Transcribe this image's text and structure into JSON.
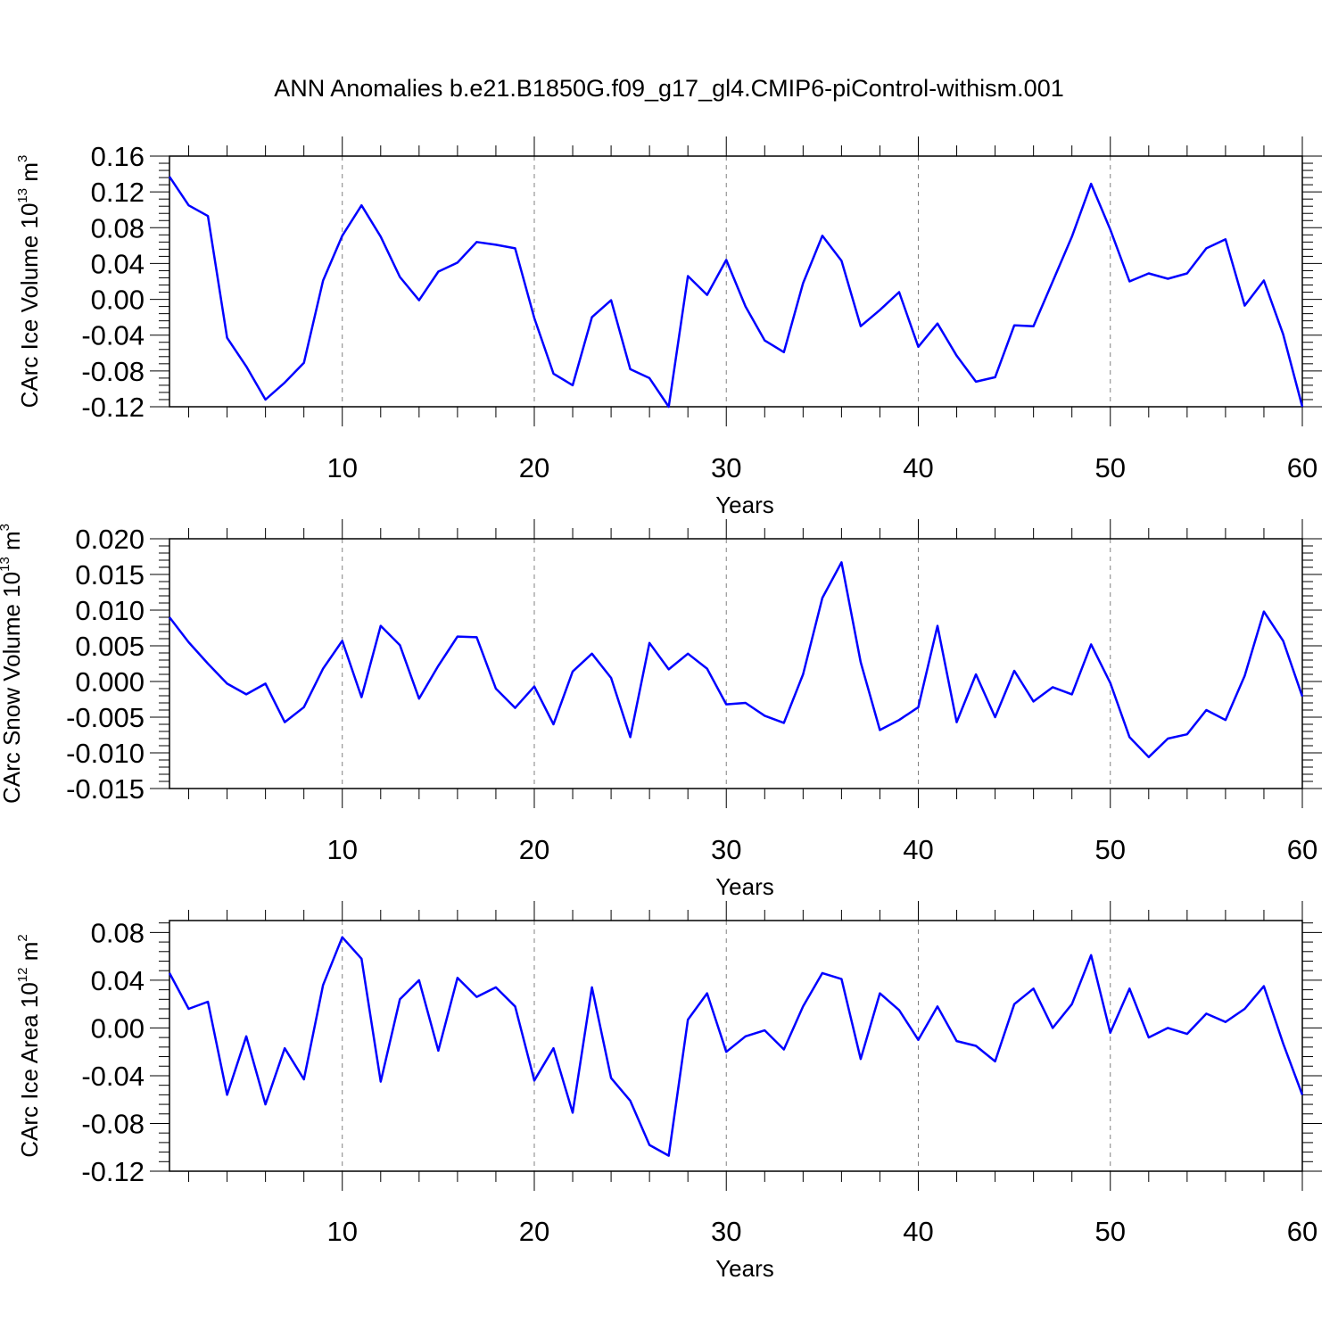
{
  "title": "ANN Anomalies b.e21.B1850G.f09_g17_gl4.CMIP6-piControl-withism.001",
  "colors": {
    "line": "#0000ff",
    "axis": "#000000",
    "gridline": "#808080"
  },
  "chart_data": [
    {
      "type": "line",
      "ylabel_main": "CArc Ice Volume 10",
      "ylabel_exp": "13",
      "ylabel_unit": " m",
      "ylabel_unit_exp": "3",
      "xlabel": "Years",
      "xlim": [
        1,
        60
      ],
      "ylim": [
        -0.12,
        0.16
      ],
      "yticks": [
        "0.16",
        "0.12",
        "0.08",
        "0.04",
        "0.00",
        "-0.04",
        "-0.08",
        "-0.12"
      ],
      "xticks": [
        "10",
        "20",
        "30",
        "40",
        "50",
        "60"
      ],
      "grid": "vertical dashed at major x ticks",
      "x": [
        1,
        2,
        3,
        4,
        5,
        6,
        7,
        8,
        9,
        10,
        11,
        12,
        13,
        14,
        15,
        16,
        17,
        18,
        19,
        20,
        21,
        22,
        23,
        24,
        25,
        26,
        27,
        28,
        29,
        30,
        31,
        32,
        33,
        34,
        35,
        36,
        37,
        38,
        39,
        40,
        41,
        42,
        43,
        44,
        45,
        46,
        47,
        48,
        49,
        50,
        51,
        52,
        53,
        54,
        55,
        56,
        57,
        58,
        59,
        60
      ],
      "values": [
        0.137,
        0.105,
        0.093,
        -0.043,
        -0.075,
        -0.112,
        -0.093,
        -0.071,
        0.021,
        0.071,
        0.105,
        0.07,
        0.025,
        -0.001,
        0.031,
        0.041,
        0.064,
        0.061,
        0.057,
        -0.021,
        -0.083,
        -0.096,
        -0.02,
        -0.001,
        -0.078,
        -0.088,
        -0.12,
        0.026,
        0.005,
        0.044,
        -0.008,
        -0.046,
        -0.059,
        0.018,
        0.071,
        0.043,
        -0.03,
        -0.012,
        0.008,
        -0.053,
        -0.027,
        -0.063,
        -0.092,
        -0.087,
        -0.029,
        -0.03,
        0.02,
        0.07,
        0.129,
        0.078,
        0.02,
        0.029,
        0.023,
        0.029,
        0.057,
        0.067,
        -0.007,
        0.021,
        -0.039,
        -0.12
      ]
    },
    {
      "type": "line",
      "ylabel_main": "CArc Snow Volume 10",
      "ylabel_exp": "13",
      "ylabel_unit": " m",
      "ylabel_unit_exp": "3",
      "xlabel": "Years",
      "xlim": [
        1,
        60
      ],
      "ylim": [
        -0.015,
        0.02
      ],
      "yticks": [
        "0.020",
        "0.015",
        "0.010",
        "0.005",
        "0.000",
        "-0.005",
        "-0.010",
        "-0.015"
      ],
      "xticks": [
        "10",
        "20",
        "30",
        "40",
        "50",
        "60"
      ],
      "grid": "vertical dashed at major x ticks",
      "x": [
        1,
        2,
        3,
        4,
        5,
        6,
        7,
        8,
        9,
        10,
        11,
        12,
        13,
        14,
        15,
        16,
        17,
        18,
        19,
        20,
        21,
        22,
        23,
        24,
        25,
        26,
        27,
        28,
        29,
        30,
        31,
        32,
        33,
        34,
        35,
        36,
        37,
        38,
        39,
        40,
        41,
        42,
        43,
        44,
        45,
        46,
        47,
        48,
        49,
        50,
        51,
        52,
        53,
        54,
        55,
        56,
        57,
        58,
        59,
        60
      ],
      "values": [
        0.009,
        0.0055,
        0.0025,
        -0.0003,
        -0.0018,
        -0.0003,
        -0.0057,
        -0.0036,
        0.0018,
        0.0057,
        -0.0022,
        0.0078,
        0.0051,
        -0.0024,
        0.0022,
        0.0063,
        0.0062,
        -0.001,
        -0.0037,
        -0.0007,
        -0.006,
        0.0014,
        0.0039,
        0.0005,
        -0.0078,
        0.0054,
        0.0017,
        0.0039,
        0.0018,
        -0.0032,
        -0.003,
        -0.0048,
        -0.0058,
        0.001,
        0.0117,
        0.0167,
        0.0027,
        -0.0068,
        -0.0054,
        -0.0036,
        0.0078,
        -0.0057,
        0.001,
        -0.005,
        0.0015,
        -0.0028,
        -0.0008,
        -0.0018,
        0.0052,
        -0.0002,
        -0.0078,
        -0.0106,
        -0.008,
        -0.0074,
        -0.004,
        -0.0054,
        0.0008,
        0.0098,
        0.0057,
        -0.0021
      ]
    },
    {
      "type": "line",
      "ylabel_main": "CArc Ice Area 10",
      "ylabel_exp": "12",
      "ylabel_unit": " m",
      "ylabel_unit_exp": "2",
      "xlabel": "Years",
      "xlim": [
        1,
        60
      ],
      "ylim": [
        -0.12,
        0.09
      ],
      "yticks": [
        "0.08",
        "0.04",
        "0.00",
        "-0.04",
        "-0.08",
        "-0.12"
      ],
      "ytick_values": [
        0.08,
        0.04,
        0.0,
        -0.04,
        -0.08,
        -0.12
      ],
      "xticks": [
        "10",
        "20",
        "30",
        "40",
        "50",
        "60"
      ],
      "grid": "vertical dashed at major x ticks",
      "x": [
        1,
        2,
        3,
        4,
        5,
        6,
        7,
        8,
        9,
        10,
        11,
        12,
        13,
        14,
        15,
        16,
        17,
        18,
        19,
        20,
        21,
        22,
        23,
        24,
        25,
        26,
        27,
        28,
        29,
        30,
        31,
        32,
        33,
        34,
        35,
        36,
        37,
        38,
        39,
        40,
        41,
        42,
        43,
        44,
        45,
        46,
        47,
        48,
        49,
        50,
        51,
        52,
        53,
        54,
        55,
        56,
        57,
        58,
        59,
        60
      ],
      "values": [
        0.046,
        0.016,
        0.022,
        -0.056,
        -0.007,
        -0.064,
        -0.017,
        -0.043,
        0.036,
        0.076,
        0.058,
        -0.045,
        0.024,
        0.04,
        -0.019,
        0.042,
        0.026,
        0.034,
        0.018,
        -0.044,
        -0.017,
        -0.071,
        0.034,
        -0.042,
        -0.061,
        -0.098,
        -0.107,
        0.007,
        0.029,
        -0.02,
        -0.007,
        -0.002,
        -0.018,
        0.018,
        0.046,
        0.041,
        -0.026,
        0.029,
        0.015,
        -0.01,
        0.018,
        -0.011,
        -0.015,
        -0.028,
        0.02,
        0.033,
        0.0,
        0.02,
        0.061,
        -0.004,
        0.033,
        -0.008,
        0.0,
        -0.005,
        0.012,
        0.005,
        0.016,
        0.035,
        -0.013,
        -0.056
      ]
    }
  ]
}
